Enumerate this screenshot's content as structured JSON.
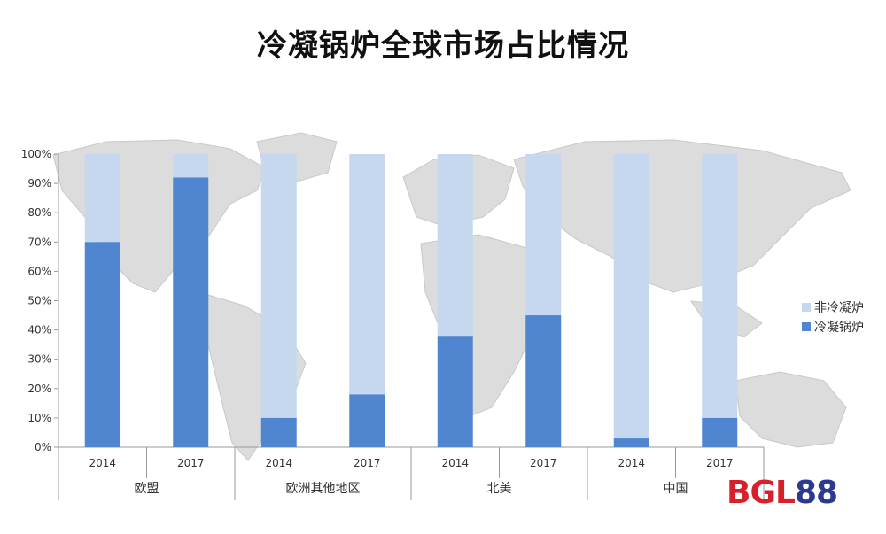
{
  "chart_data": {
    "type": "bar",
    "stacked": true,
    "title": "冷凝锅炉全球市场占比情况",
    "groups": [
      {
        "name": "欧盟",
        "years": [
          "2014",
          "2017"
        ]
      },
      {
        "name": "欧洲其他地区",
        "years": [
          "2014",
          "2017"
        ]
      },
      {
        "name": "北美",
        "years": [
          "2014",
          "2017"
        ]
      },
      {
        "name": "中国",
        "years": [
          "2014",
          "2017"
        ]
      }
    ],
    "categories": [
      "欧盟 2014",
      "欧盟 2017",
      "欧洲其他地区 2014",
      "欧洲其他地区 2017",
      "北美 2014",
      "北美 2017",
      "中国 2014",
      "中国 2017"
    ],
    "series": [
      {
        "name": "冷凝锅炉",
        "color": "#4f86cf",
        "values": [
          70,
          92,
          10,
          18,
          38,
          45,
          3,
          10
        ]
      },
      {
        "name": "非冷凝炉",
        "color": "#c5d8ef",
        "values": [
          30,
          8,
          90,
          82,
          62,
          55,
          97,
          90
        ]
      }
    ],
    "yticks": [
      "0%",
      "10%",
      "20%",
      "30%",
      "40%",
      "50%",
      "60%",
      "70%",
      "80%",
      "90%",
      "100%"
    ],
    "ylim": [
      0,
      100
    ],
    "legend": {
      "position": "right",
      "items": [
        "非冷凝炉",
        "冷凝锅炉"
      ]
    },
    "xlabel": "",
    "ylabel": ""
  },
  "watermark": {
    "part1": "BGL",
    "part2": "88"
  }
}
